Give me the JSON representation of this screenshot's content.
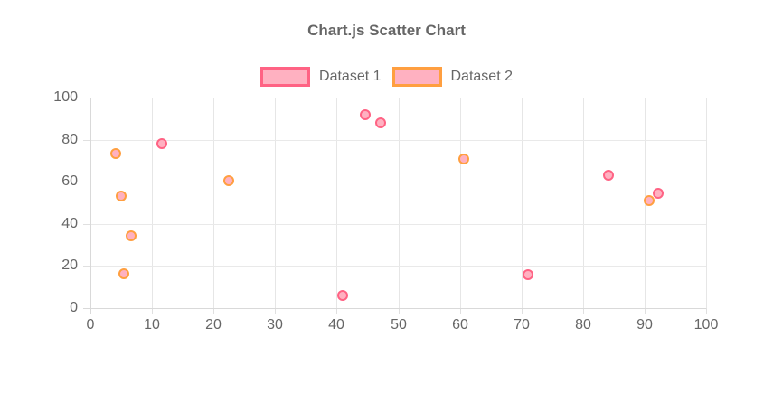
{
  "title": "Chart.js Scatter Chart",
  "legend": {
    "items": [
      {
        "label": "Dataset 1",
        "border_color": "#FF6384",
        "fill_color": "#FFB1C1"
      },
      {
        "label": "Dataset 2",
        "border_color": "#FF9F40",
        "fill_color": "#FFB1C1"
      }
    ]
  },
  "chart_data": {
    "type": "scatter",
    "title": "Chart.js Scatter Chart",
    "xlabel": "",
    "ylabel": "",
    "xlim": [
      0,
      100
    ],
    "ylim": [
      0,
      100
    ],
    "x_ticks": [
      0,
      10,
      20,
      30,
      40,
      50,
      60,
      70,
      80,
      90,
      100
    ],
    "y_ticks": [
      0,
      20,
      40,
      60,
      80,
      100
    ],
    "grid": true,
    "legend_position": "top",
    "series": [
      {
        "name": "Dataset 1",
        "border_color": "#FF6384",
        "background_color": "#FFB1C1",
        "points": [
          {
            "x": 11.6,
            "y": 78.1
          },
          {
            "x": 40.9,
            "y": 6.1
          },
          {
            "x": 44.6,
            "y": 91.9
          },
          {
            "x": 47.2,
            "y": 87.8
          },
          {
            "x": 71.0,
            "y": 16.0
          },
          {
            "x": 84.1,
            "y": 63.2
          },
          {
            "x": 92.2,
            "y": 54.6
          }
        ]
      },
      {
        "name": "Dataset 2",
        "border_color": "#FF9F40",
        "background_color": "#FFB1C1",
        "points": [
          {
            "x": 4.1,
            "y": 73.3
          },
          {
            "x": 5.0,
            "y": 53.3
          },
          {
            "x": 5.5,
            "y": 16.4
          },
          {
            "x": 6.6,
            "y": 34.3
          },
          {
            "x": 22.4,
            "y": 60.4
          },
          {
            "x": 60.7,
            "y": 70.7
          },
          {
            "x": 90.8,
            "y": 51.1
          }
        ]
      }
    ]
  },
  "colors": {
    "title_text": "#666666",
    "tick_text": "#666666",
    "gridline": "#e6e6e6",
    "axis_border": "#d9d9d9",
    "background": "#ffffff"
  }
}
